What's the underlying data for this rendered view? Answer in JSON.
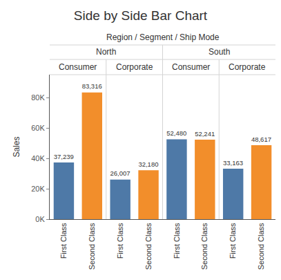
{
  "chart_data": {
    "type": "bar",
    "title": "Side by Side Bar Chart",
    "header": "Region / Segment / Ship Mode",
    "regions": [
      "North",
      "South"
    ],
    "segments": [
      "Consumer",
      "Corporate",
      "Consumer",
      "Corporate"
    ],
    "categories": [
      "First Class",
      "Second Class",
      "First Class",
      "Second Class",
      "First Class",
      "Second Class",
      "First Class",
      "Second Class"
    ],
    "values": [
      37239,
      83316,
      26007,
      32180,
      52480,
      52241,
      33163,
      48617
    ],
    "value_labels": [
      "37,239",
      "83,316",
      "26,007",
      "32,180",
      "52,480",
      "52,241",
      "33,163",
      "48,617"
    ],
    "colors": [
      "#4e79a7",
      "#f28e2b",
      "#4e79a7",
      "#f28e2b",
      "#4e79a7",
      "#f28e2b",
      "#4e79a7",
      "#f28e2b"
    ],
    "y_label": "Sales",
    "ylim": [
      0,
      95000
    ],
    "yticks": [
      {
        "value": 0,
        "label": "0K"
      },
      {
        "value": 20000,
        "label": "20K"
      },
      {
        "value": 40000,
        "label": "40K"
      },
      {
        "value": 60000,
        "label": "60K"
      },
      {
        "value": 80000,
        "label": "80K"
      }
    ],
    "grid": false,
    "data_labels": true
  }
}
